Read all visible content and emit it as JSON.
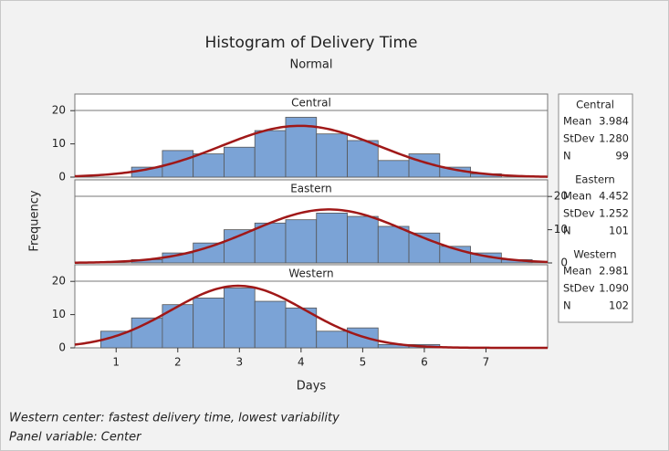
{
  "title": "Histogram of Delivery Time",
  "subtitle": "Normal",
  "x_label": "Days",
  "y_label": "Frequency",
  "stats_names": {
    "mean": "Mean",
    "stdev": "StDev",
    "n": "N"
  },
  "footnotes": [
    "Western center: fastest delivery time, lowest variability",
    "Panel variable: Center"
  ],
  "chart_data": [
    {
      "type": "histogram",
      "title": "Central",
      "color": "#7ba3d6",
      "fit_color": "#a01818",
      "bins": [
        1.25,
        1.75,
        2.25,
        2.75,
        3.25,
        3.75,
        4.25,
        4.75,
        5.25,
        5.75,
        6.25,
        6.75,
        7.25
      ],
      "values": [
        3,
        8,
        7,
        9,
        14,
        18,
        13,
        11,
        5,
        7,
        3,
        1
      ],
      "stats": {
        "mean": 3.984,
        "stdev": {
          "value": 1.28,
          "label": "1.280"
        },
        "n": 99
      },
      "xlim": [
        0.33,
        8.0
      ],
      "xticks": [
        1,
        2,
        3,
        4,
        5,
        6,
        7
      ],
      "ylim": [
        0,
        25
      ],
      "yticks": [
        0,
        10,
        20
      ],
      "y_axis_side": "left"
    },
    {
      "type": "histogram",
      "title": "Eastern",
      "color": "#7ba3d6",
      "fit_color": "#a01818",
      "bins": [
        1.25,
        1.75,
        2.25,
        2.75,
        3.25,
        3.75,
        4.25,
        4.75,
        5.25,
        5.75,
        6.25,
        6.75,
        7.25,
        7.75
      ],
      "values": [
        1,
        3,
        6,
        10,
        12,
        13,
        15,
        14,
        11,
        9,
        5,
        3,
        1
      ],
      "stats": {
        "mean": 4.452,
        "stdev": 1.252,
        "n": 101
      },
      "xlim": [
        0.33,
        8.0
      ],
      "xticks": [
        1,
        2,
        3,
        4,
        5,
        6,
        7
      ],
      "ylim": [
        0,
        25
      ],
      "yticks": [
        0,
        10,
        20
      ],
      "y_axis_side": "right"
    },
    {
      "type": "histogram",
      "title": "Western",
      "color": "#7ba3d6",
      "fit_color": "#a01818",
      "bins": [
        0.75,
        1.25,
        1.75,
        2.25,
        2.75,
        3.25,
        3.75,
        4.25,
        4.75,
        5.25,
        5.75,
        6.25
      ],
      "values": [
        5,
        9,
        13,
        15,
        18,
        14,
        12,
        5,
        6,
        1,
        1
      ],
      "stats": {
        "mean": 2.981,
        "stdev": {
          "value": 1.09,
          "label": "1.090"
        },
        "n": 102
      },
      "xlim": [
        0.33,
        8.0
      ],
      "xticks": [
        1,
        2,
        3,
        4,
        5,
        6,
        7
      ],
      "ylim": [
        0,
        25
      ],
      "yticks": [
        0,
        10,
        20
      ],
      "y_axis_side": "left"
    }
  ]
}
